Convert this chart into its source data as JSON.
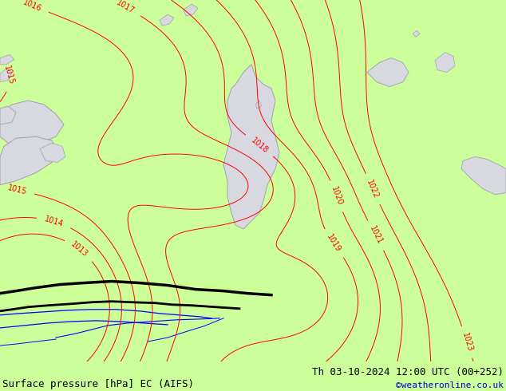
{
  "title_left": "Surface pressure [hPa] EC (AIFS)",
  "title_right": "Th 03-10-2024 12:00 UTC (00+252)",
  "watermark": "©weatheronline.co.uk",
  "bg_color": "#ccff99",
  "contour_color": "#ff0000",
  "water_fill": "#d8d8e0",
  "water_edge": "#a0a0b0",
  "river_color": "#0000ff",
  "border_color": "#000000",
  "label_fontsize": 7,
  "title_fontsize": 9,
  "watermark_color": "#0000cc",
  "figsize": [
    6.34,
    4.9
  ],
  "dpi": 100,
  "contour_levels": [
    1013,
    1014,
    1015,
    1016,
    1017,
    1018,
    1019,
    1020,
    1021,
    1022,
    1023
  ]
}
